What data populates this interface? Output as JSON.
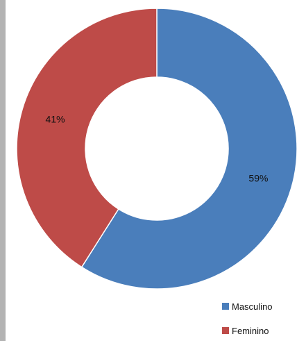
{
  "chart_data": {
    "type": "donut",
    "title": "",
    "categories": [
      "Masculino",
      "Feminino"
    ],
    "values": [
      59,
      41
    ],
    "labels": [
      "59%",
      "41%"
    ],
    "colors": [
      "#4a7ebb",
      "#be4b48"
    ],
    "legend_position": "bottom-right"
  }
}
